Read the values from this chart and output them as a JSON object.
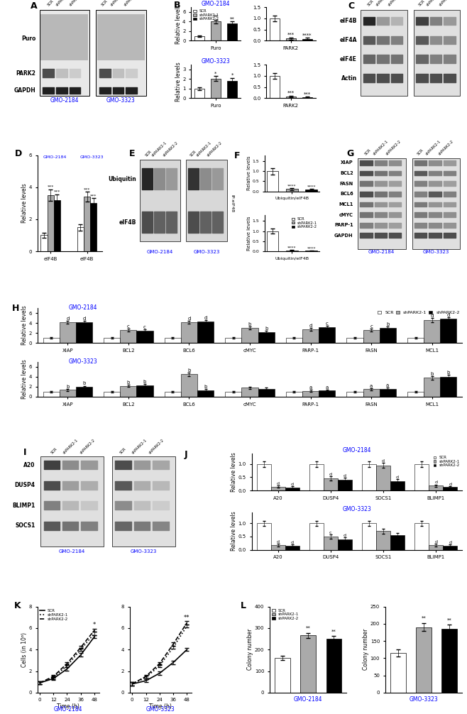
{
  "colors": {
    "SCR": "#ffffff",
    "shPARK2_1": "#aaaaaa",
    "shPARK2_2": "#000000",
    "blue_title": "#0000cc"
  },
  "B_GMO2184_Puro": {
    "SCR": [
      1.0,
      0.15
    ],
    "sh1": [
      4.0,
      0.4
    ],
    "sh2": [
      3.6,
      0.4
    ]
  },
  "B_GMO2184_PARK2": {
    "SCR": [
      1.0,
      0.12
    ],
    "sh1": [
      0.1,
      0.05
    ],
    "sh2": [
      0.08,
      0.04
    ]
  },
  "B_GMO3323_Puro": {
    "SCR": [
      1.0,
      0.15
    ],
    "sh1": [
      2.05,
      0.25
    ],
    "sh2": [
      1.85,
      0.25
    ]
  },
  "B_GMO3323_PARK2": {
    "SCR": [
      1.0,
      0.12
    ],
    "sh1": [
      0.08,
      0.04
    ],
    "sh2": [
      0.05,
      0.03
    ]
  },
  "D_GMO2184_eIF4B": {
    "SCR": [
      1.0,
      0.15
    ],
    "sh1": [
      3.5,
      0.35
    ],
    "sh2": [
      3.2,
      0.35
    ]
  },
  "D_GMO3323_eIF4B": {
    "SCR": [
      1.5,
      0.2
    ],
    "sh1": [
      3.4,
      0.3
    ],
    "sh2": [
      3.0,
      0.3
    ]
  },
  "F_top": {
    "SCR": [
      1.0,
      0.15
    ],
    "sh1": [
      0.12,
      0.05
    ],
    "sh2": [
      0.08,
      0.04
    ]
  },
  "F_bot": {
    "SCR": [
      1.0,
      0.12
    ],
    "sh1": [
      0.04,
      0.02
    ],
    "sh2": [
      0.03,
      0.02
    ]
  },
  "H_GMO2184": {
    "XIAP": {
      "SCR": [
        1.0,
        0.1
      ],
      "sh1": [
        4.1,
        0.3
      ],
      "sh2": [
        4.2,
        0.3
      ]
    },
    "BCL2": {
      "SCR": [
        1.0,
        0.1
      ],
      "sh1": [
        2.6,
        0.3
      ],
      "sh2": [
        2.4,
        0.3
      ]
    },
    "BCL6": {
      "SCR": [
        1.0,
        0.1
      ],
      "sh1": [
        4.1,
        0.3
      ],
      "sh2": [
        4.3,
        0.3
      ]
    },
    "cMYC": {
      "SCR": [
        1.0,
        0.1
      ],
      "sh1": [
        3.0,
        0.3
      ],
      "sh2": [
        2.2,
        0.3
      ]
    },
    "PARP-1": {
      "SCR": [
        1.0,
        0.1
      ],
      "sh1": [
        2.7,
        0.3
      ],
      "sh2": [
        3.1,
        0.3
      ]
    },
    "FASN": {
      "SCR": [
        1.0,
        0.1
      ],
      "sh1": [
        2.6,
        0.3
      ],
      "sh2": [
        3.0,
        0.3
      ]
    },
    "MCL1": {
      "SCR": [
        1.0,
        0.1
      ],
      "sh1": [
        4.6,
        0.4
      ],
      "sh2": [
        4.8,
        0.4
      ]
    }
  },
  "H_GMO3323": {
    "XIAP": {
      "SCR": [
        1.0,
        0.1
      ],
      "sh1": [
        1.4,
        0.2
      ],
      "sh2": [
        2.0,
        0.2
      ]
    },
    "BCL2": {
      "SCR": [
        1.0,
        0.1
      ],
      "sh1": [
        2.2,
        0.2
      ],
      "sh2": [
        2.3,
        0.2
      ]
    },
    "BCL6": {
      "SCR": [
        1.0,
        0.1
      ],
      "sh1": [
        4.5,
        0.4
      ],
      "sh2": [
        1.3,
        0.2
      ]
    },
    "cMYC": {
      "SCR": [
        1.0,
        0.1
      ],
      "sh1": [
        1.8,
        0.2
      ],
      "sh2": [
        1.6,
        0.2
      ]
    },
    "PARP-1": {
      "SCR": [
        1.0,
        0.1
      ],
      "sh1": [
        1.2,
        0.15
      ],
      "sh2": [
        1.3,
        0.15
      ]
    },
    "FASN": {
      "SCR": [
        1.0,
        0.1
      ],
      "sh1": [
        1.5,
        0.2
      ],
      "sh2": [
        1.6,
        0.2
      ]
    },
    "MCL1": {
      "SCR": [
        1.0,
        0.1
      ],
      "sh1": [
        3.8,
        0.4
      ],
      "sh2": [
        4.0,
        0.4
      ]
    }
  },
  "J_GMO2184": {
    "A20": {
      "SCR": [
        1.0,
        0.1
      ],
      "sh1": [
        0.15,
        0.05
      ],
      "sh2": [
        0.12,
        0.04
      ]
    },
    "DUSP4": {
      "SCR": [
        1.0,
        0.1
      ],
      "sh1": [
        0.45,
        0.08
      ],
      "sh2": [
        0.4,
        0.08
      ]
    },
    "SOCS1": {
      "SCR": [
        1.0,
        0.1
      ],
      "sh1": [
        0.95,
        0.1
      ],
      "sh2": [
        0.35,
        0.07
      ]
    },
    "BLIMP1": {
      "SCR": [
        1.0,
        0.1
      ],
      "sh1": [
        0.18,
        0.05
      ],
      "sh2": [
        0.13,
        0.04
      ]
    }
  },
  "J_GMO3323": {
    "A20": {
      "SCR": [
        1.0,
        0.1
      ],
      "sh1": [
        0.18,
        0.05
      ],
      "sh2": [
        0.15,
        0.04
      ]
    },
    "DUSP4": {
      "SCR": [
        1.0,
        0.1
      ],
      "sh1": [
        0.5,
        0.08
      ],
      "sh2": [
        0.4,
        0.07
      ]
    },
    "SOCS1": {
      "SCR": [
        1.0,
        0.1
      ],
      "sh1": [
        0.7,
        0.09
      ],
      "sh2": [
        0.55,
        0.08
      ]
    },
    "BLIMP1": {
      "SCR": [
        1.0,
        0.1
      ],
      "sh1": [
        0.18,
        0.05
      ],
      "sh2": [
        0.15,
        0.04
      ]
    }
  },
  "K_GMO2184": {
    "time": [
      0,
      12,
      24,
      36,
      48
    ],
    "SCR": [
      0.9,
      1.3,
      2.2,
      3.5,
      5.2
    ],
    "sh1": [
      0.9,
      1.4,
      2.5,
      4.0,
      5.5
    ],
    "sh2": [
      0.9,
      1.5,
      2.7,
      4.2,
      5.8
    ]
  },
  "K_GMO3323": {
    "time": [
      0,
      12,
      24,
      36,
      48
    ],
    "SCR": [
      0.8,
      1.1,
      1.8,
      2.8,
      4.0
    ],
    "sh1": [
      0.8,
      1.4,
      2.5,
      4.2,
      6.2
    ],
    "sh2": [
      0.8,
      1.5,
      2.7,
      4.5,
      6.5
    ]
  },
  "L_GMO2184": {
    "SCR": [
      160,
      10
    ],
    "sh1": [
      265,
      12
    ],
    "sh2": [
      250,
      12
    ]
  },
  "L_GMO3323": {
    "SCR": [
      115,
      10
    ],
    "sh1": [
      190,
      12
    ],
    "sh2": [
      185,
      12
    ]
  },
  "sig_h1": [
    [
      "d",
      "d"
    ],
    [
      "c",
      "c"
    ],
    [
      "d",
      "d"
    ],
    [
      "b",
      "b"
    ],
    [
      "d",
      "c"
    ],
    [
      "c",
      "b"
    ],
    [
      "d",
      "d"
    ]
  ],
  "sig_h2": [
    [
      "b",
      "b"
    ],
    [
      "b",
      "b"
    ],
    [
      "b",
      "b"
    ],
    [
      "",
      ""
    ],
    [
      "a",
      "a"
    ],
    [
      "a",
      "a"
    ],
    [
      "b",
      "b"
    ]
  ]
}
